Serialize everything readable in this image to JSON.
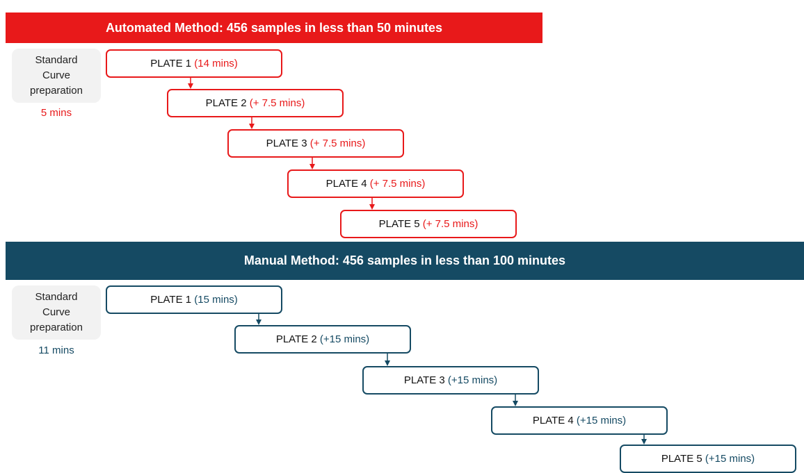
{
  "automated": {
    "title": "Automated Method: 456 samples in less than 50 minutes",
    "prep_label": "Standard Curve preparation",
    "prep_time": "5 mins",
    "plates": [
      {
        "label": "PLATE 1",
        "time": "(14 mins)"
      },
      {
        "label": "PLATE 2",
        "time": "(+ 7.5 mins)"
      },
      {
        "label": "PLATE 3",
        "time": "(+ 7.5 mins)"
      },
      {
        "label": "PLATE 4",
        "time": "(+ 7.5 mins)"
      },
      {
        "label": "PLATE 5",
        "time": "(+ 7.5 mins)"
      }
    ]
  },
  "manual": {
    "title": "Manual Method: 456 samples in less than 100 minutes",
    "prep_label": "Standard Curve preparation",
    "prep_time": "11 mins",
    "plates": [
      {
        "label": "PLATE 1",
        "time": "(15 mins)"
      },
      {
        "label": "PLATE 2",
        "time": "(+15 mins)"
      },
      {
        "label": "PLATE 3",
        "time": "(+15 mins)"
      },
      {
        "label": "PLATE 4",
        "time": "(+15 mins)"
      },
      {
        "label": "PLATE 5",
        "time": "(+15 mins)"
      }
    ]
  }
}
